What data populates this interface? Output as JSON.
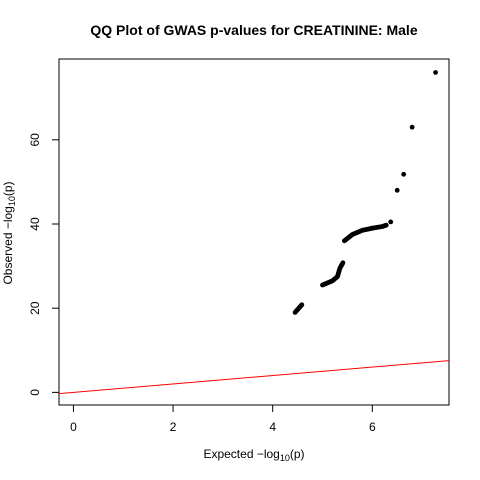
{
  "chart_data": {
    "type": "scatter",
    "title": "QQ Plot of GWAS p-values for CREATININE: Male",
    "xlabel": {
      "prefix": "Expected  −log",
      "sub": "10",
      "suffix": "(p)"
    },
    "ylabel": {
      "prefix": "Observed  −log",
      "sub": "10",
      "suffix": "(p)"
    },
    "xlim": [
      -0.29,
      7.54
    ],
    "ylim": [
      -3.0,
      79.2
    ],
    "xticks": [
      0,
      2,
      4,
      6
    ],
    "yticks": [
      0,
      20,
      40,
      60
    ],
    "point_color": "#000000",
    "reference_line": {
      "slope": 1,
      "intercept": 0,
      "color": "#ff0000"
    },
    "curve": [
      [
        0.0,
        0.0
      ],
      [
        0.5,
        0.5
      ],
      [
        1.0,
        1.0
      ],
      [
        1.5,
        1.6
      ],
      [
        2.0,
        2.4
      ],
      [
        2.5,
        3.4
      ],
      [
        3.0,
        5.0
      ],
      [
        3.3,
        6.5
      ],
      [
        3.6,
        8.5
      ],
      [
        3.9,
        11.0
      ],
      [
        4.1,
        13.0
      ],
      [
        4.3,
        16.0
      ],
      [
        4.45,
        19.0
      ],
      [
        4.6,
        21.0
      ],
      [
        4.8,
        23.5
      ],
      [
        5.0,
        25.5
      ],
      [
        5.2,
        26.5
      ],
      [
        5.3,
        27.5
      ],
      [
        5.35,
        29.5
      ],
      [
        5.42,
        31.0
      ],
      [
        5.44,
        36.0
      ],
      [
        5.6,
        37.5
      ],
      [
        5.8,
        38.5
      ],
      [
        6.0,
        39.0
      ],
      [
        6.2,
        39.4
      ],
      [
        6.3,
        39.8
      ]
    ],
    "points": [
      {
        "x": 6.37,
        "y": 40.5
      },
      {
        "x": 6.5,
        "y": 48.0
      },
      {
        "x": 6.63,
        "y": 51.8
      },
      {
        "x": 6.8,
        "y": 63.0
      },
      {
        "x": 7.27,
        "y": 76.0
      }
    ]
  }
}
